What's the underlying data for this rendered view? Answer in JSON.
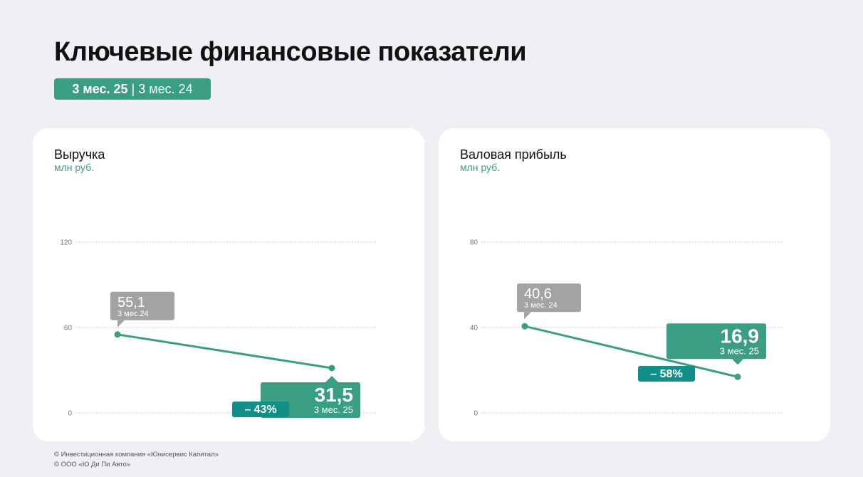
{
  "title": "Ключевые финансовые показатели",
  "period_toggle": {
    "current": "3 мес. 25",
    "separator": "|",
    "previous": "3 мес. 24"
  },
  "colors": {
    "accent": "#3a9e83",
    "delta": "#138f8a",
    "previous": "#a3a3a3",
    "background": "#efeff4",
    "card": "#ffffff"
  },
  "chart_data": [
    {
      "type": "line",
      "title": "Выручка",
      "ylabel": "млн руб.",
      "ylim": [
        0,
        120
      ],
      "yticks": [
        "0",
        "60",
        "120"
      ],
      "grid": true,
      "series": [
        {
          "values": [
            55.1,
            31.5
          ]
        }
      ],
      "callouts": [
        {
          "value": "55,1",
          "label": "3 мес.24",
          "style": "previous"
        },
        {
          "value": "31,5",
          "label": "3 мес. 25",
          "style": "current"
        }
      ],
      "delta": "– 43%"
    },
    {
      "type": "line",
      "title": "Валовая прибыль",
      "ylabel": "млн руб.",
      "ylim": [
        0,
        80
      ],
      "yticks": [
        "0",
        "40",
        "80"
      ],
      "grid": true,
      "series": [
        {
          "values": [
            40.6,
            16.9
          ]
        }
      ],
      "callouts": [
        {
          "value": "40,6",
          "label": "3 мес. 24",
          "style": "previous"
        },
        {
          "value": "16,9",
          "label": "3 мес. 25",
          "style": "current"
        }
      ],
      "delta": "– 58%"
    }
  ],
  "footer": [
    "© Инвестиционная компания «Юнисервис Капитал»",
    "© ООО «Ю Ди Пи Авто»"
  ]
}
